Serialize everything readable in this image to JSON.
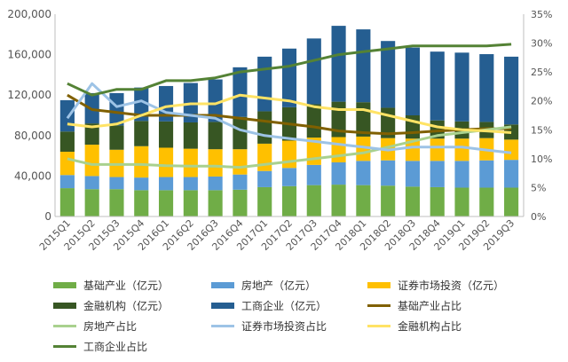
{
  "chart_data": {
    "type": "bar",
    "stacked": true,
    "categories": [
      "2015Q1",
      "2015Q2",
      "2015Q3",
      "2015Q4",
      "2016Q1",
      "2016Q2",
      "2016Q3",
      "2016Q4",
      "2017Q1",
      "2017Q2",
      "2017Q3",
      "2017Q4",
      "2018Q1",
      "2018Q2",
      "2018Q3",
      "2018Q4",
      "2019Q1",
      "2019Q2",
      "2019Q3"
    ],
    "ylim": [
      0,
      200000
    ],
    "y2lim": [
      0,
      0.35
    ],
    "y_ticks": [
      "0",
      "40,000",
      "80,000",
      "120,000",
      "160,000",
      "200,000"
    ],
    "y2_ticks": [
      "0%",
      "5%",
      "10%",
      "15%",
      "20%",
      "25%",
      "30%",
      "35%"
    ],
    "bar_series": [
      {
        "name": "基础产业（亿元）",
        "color": "#70ad47",
        "values": [
          28000,
          27000,
          27000,
          26000,
          26000,
          26000,
          26000,
          26500,
          29000,
          30000,
          31000,
          31500,
          31000,
          30500,
          29500,
          29000,
          28500,
          28500,
          28500
        ]
      },
      {
        "name": "房地产（亿元）",
        "color": "#5b9bd5",
        "values": [
          13000,
          13000,
          12000,
          12500,
          13000,
          13000,
          13500,
          15000,
          16000,
          18000,
          20000,
          22000,
          24000,
          25000,
          25500,
          26000,
          26500,
          27000,
          27500
        ]
      },
      {
        "name": "证券市场投资（亿元）",
        "color": "#ffc000",
        "values": [
          23000,
          31000,
          27000,
          31000,
          29000,
          28000,
          27000,
          25000,
          27000,
          27000,
          27000,
          25000,
          24000,
          22000,
          22000,
          22000,
          22000,
          22000,
          20000
        ]
      },
      {
        "name": "金融机构（亿元）",
        "color": "#375623",
        "values": [
          20000,
          21000,
          24000,
          25000,
          26000,
          26000,
          27000,
          32000,
          32000,
          33000,
          33000,
          35000,
          34000,
          30000,
          23000,
          18000,
          17000,
          16000,
          15000
        ]
      },
      {
        "name": "工商企业（亿元）",
        "color": "#255e91",
        "values": [
          31000,
          30000,
          32000,
          33000,
          35000,
          39000,
          42000,
          49000,
          54000,
          58000,
          65000,
          75000,
          72000,
          66000,
          67000,
          68000,
          68000,
          67000,
          67000
        ]
      }
    ],
    "line_series": [
      {
        "name": "基础产业占比",
        "color": "#806000",
        "values": [
          0.21,
          0.185,
          0.18,
          0.175,
          0.175,
          0.175,
          0.175,
          0.17,
          0.165,
          0.16,
          0.155,
          0.148,
          0.145,
          0.143,
          0.145,
          0.148,
          0.15,
          0.152,
          0.152
        ]
      },
      {
        "name": "房地产占比",
        "color": "#a9d18e",
        "values": [
          0.1,
          0.09,
          0.09,
          0.09,
          0.088,
          0.087,
          0.087,
          0.085,
          0.09,
          0.095,
          0.1,
          0.105,
          0.11,
          0.12,
          0.13,
          0.14,
          0.145,
          0.15,
          0.155
        ]
      },
      {
        "name": "证券市场投资占比",
        "color": "#9dc3e6",
        "values": [
          0.17,
          0.23,
          0.19,
          0.2,
          0.18,
          0.175,
          0.17,
          0.15,
          0.14,
          0.135,
          0.13,
          0.125,
          0.12,
          0.115,
          0.12,
          0.12,
          0.12,
          0.115,
          0.11
        ]
      },
      {
        "name": "金融机构占比",
        "color": "#ffe365",
        "values": [
          0.16,
          0.155,
          0.16,
          0.175,
          0.19,
          0.195,
          0.195,
          0.21,
          0.205,
          0.2,
          0.19,
          0.185,
          0.185,
          0.175,
          0.165,
          0.155,
          0.15,
          0.148,
          0.145
        ]
      },
      {
        "name": "工商企业占比",
        "color": "#548235",
        "values": [
          0.23,
          0.21,
          0.22,
          0.22,
          0.235,
          0.235,
          0.24,
          0.25,
          0.255,
          0.26,
          0.27,
          0.28,
          0.285,
          0.29,
          0.295,
          0.295,
          0.295,
          0.295,
          0.298
        ]
      }
    ]
  }
}
